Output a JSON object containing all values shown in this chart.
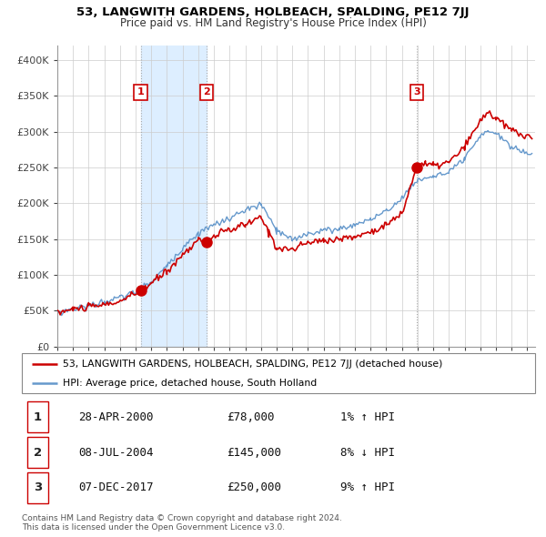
{
  "title": "53, LANGWITH GARDENS, HOLBEACH, SPALDING, PE12 7JJ",
  "subtitle": "Price paid vs. HM Land Registry's House Price Index (HPI)",
  "sales": [
    {
      "date": "28-APR-2000",
      "year": 2000.32,
      "price": 78000,
      "label": "1",
      "hpi_pct": "1% ↑ HPI"
    },
    {
      "date": "08-JUL-2004",
      "year": 2004.52,
      "price": 145000,
      "label": "2",
      "hpi_pct": "8% ↓ HPI"
    },
    {
      "date": "07-DEC-2017",
      "year": 2017.93,
      "price": 250000,
      "label": "3",
      "hpi_pct": "9% ↑ HPI"
    }
  ],
  "shaded_region": [
    2000.32,
    2004.52
  ],
  "x_start": 1995.0,
  "x_end": 2025.5,
  "y_min": 0,
  "y_max": 420000,
  "y_ticks": [
    0,
    50000,
    100000,
    150000,
    200000,
    250000,
    300000,
    350000,
    400000
  ],
  "y_tick_labels": [
    "£0",
    "£50K",
    "£100K",
    "£150K",
    "£200K",
    "£250K",
    "£300K",
    "£350K",
    "£400K"
  ],
  "x_ticks": [
    1995,
    1996,
    1997,
    1998,
    1999,
    2000,
    2001,
    2002,
    2003,
    2004,
    2005,
    2006,
    2007,
    2008,
    2009,
    2010,
    2011,
    2012,
    2013,
    2014,
    2015,
    2016,
    2017,
    2018,
    2019,
    2020,
    2021,
    2022,
    2023,
    2024,
    2025
  ],
  "property_line_color": "#cc0000",
  "hpi_line_color": "#6699cc",
  "sale_dot_color": "#cc0000",
  "background_color": "#ffffff",
  "plot_bg_color": "#ffffff",
  "grid_color": "#cccccc",
  "shaded_color": "#ddeeff",
  "legend_property": "53, LANGWITH GARDENS, HOLBEACH, SPALDING, PE12 7JJ (detached house)",
  "legend_hpi": "HPI: Average price, detached house, South Holland",
  "footer1": "Contains HM Land Registry data © Crown copyright and database right 2024.",
  "footer2": "This data is licensed under the Open Government Licence v3.0."
}
